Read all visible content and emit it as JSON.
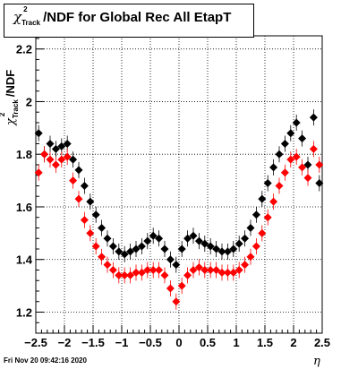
{
  "chart_data": {
    "type": "scatter",
    "title": "χ²_Track/NDF for Global Rec All EtapT",
    "title_parts": {
      "symbol": "χ",
      "sup": "2",
      "sub": "Track",
      "rest": "/NDF for Global Rec All EtapT"
    },
    "xlabel": "η",
    "ylabel": "χ²_Track/NDF",
    "ylabel_parts": {
      "symbol": "χ",
      "sup": "2",
      "sub": "Track",
      "rest": "/NDF"
    },
    "xlim": [
      -2.5,
      2.5
    ],
    "ylim": [
      1.12,
      2.25
    ],
    "x_ticks": [
      -2.5,
      -2,
      -1.5,
      -1,
      -0.5,
      0,
      0.5,
      1,
      1.5,
      2,
      2.5
    ],
    "x_tick_labels": [
      "−2.5",
      "−2",
      "−1.5",
      "−1",
      "−0.5",
      "0",
      "0.5",
      "1",
      "1.5",
      "2",
      "2.5"
    ],
    "y_ticks": [
      1.2,
      1.4,
      1.6,
      1.8,
      2.0,
      2.2
    ],
    "y_tick_labels": [
      "1.2",
      "1.4",
      "1.6",
      "1.8",
      "2",
      "2.2"
    ],
    "grid": true,
    "legend": "none",
    "series": [
      {
        "color": "#000000",
        "x": [
          -2.45,
          -2.35,
          -2.25,
          -2.15,
          -2.05,
          -1.95,
          -1.85,
          -1.75,
          -1.65,
          -1.55,
          -1.45,
          -1.35,
          -1.25,
          -1.15,
          -1.05,
          -0.95,
          -0.85,
          -0.75,
          -0.65,
          -0.55,
          -0.45,
          -0.35,
          -0.25,
          -0.15,
          -0.05,
          0.05,
          0.15,
          0.25,
          0.35,
          0.45,
          0.55,
          0.65,
          0.75,
          0.85,
          0.95,
          1.05,
          1.15,
          1.25,
          1.35,
          1.45,
          1.55,
          1.65,
          1.75,
          1.85,
          1.95,
          2.05,
          2.15,
          2.25,
          2.35,
          2.45
        ],
        "y": [
          1.88,
          1.8,
          1.84,
          1.82,
          1.83,
          1.84,
          1.78,
          1.74,
          1.68,
          1.62,
          1.57,
          1.52,
          1.48,
          1.45,
          1.43,
          1.42,
          1.43,
          1.44,
          1.45,
          1.47,
          1.49,
          1.48,
          1.44,
          1.4,
          1.38,
          1.44,
          1.48,
          1.49,
          1.47,
          1.46,
          1.45,
          1.44,
          1.43,
          1.43,
          1.44,
          1.46,
          1.48,
          1.52,
          1.57,
          1.63,
          1.69,
          1.75,
          1.8,
          1.84,
          1.88,
          1.92,
          1.86,
          1.76,
          1.94,
          1.69
        ]
      },
      {
        "color": "#ff0000",
        "x": [
          -2.45,
          -2.35,
          -2.25,
          -2.15,
          -2.05,
          -1.95,
          -1.85,
          -1.75,
          -1.65,
          -1.55,
          -1.45,
          -1.35,
          -1.25,
          -1.15,
          -1.05,
          -0.95,
          -0.85,
          -0.75,
          -0.65,
          -0.55,
          -0.45,
          -0.35,
          -0.25,
          -0.15,
          -0.05,
          0.05,
          0.15,
          0.25,
          0.35,
          0.45,
          0.55,
          0.65,
          0.75,
          0.85,
          0.95,
          1.05,
          1.15,
          1.25,
          1.35,
          1.45,
          1.55,
          1.65,
          1.75,
          1.85,
          1.95,
          2.05,
          2.15,
          2.25,
          2.35,
          2.45
        ],
        "y": [
          1.73,
          1.8,
          1.78,
          1.76,
          1.78,
          1.79,
          1.7,
          1.63,
          1.55,
          1.5,
          1.45,
          1.41,
          1.38,
          1.36,
          1.34,
          1.34,
          1.34,
          1.35,
          1.35,
          1.36,
          1.36,
          1.36,
          1.34,
          1.29,
          1.24,
          1.3,
          1.34,
          1.36,
          1.37,
          1.36,
          1.36,
          1.36,
          1.35,
          1.35,
          1.35,
          1.36,
          1.38,
          1.41,
          1.45,
          1.5,
          1.56,
          1.62,
          1.68,
          1.73,
          1.78,
          1.79,
          1.75,
          1.71,
          1.82,
          1.76
        ]
      }
    ]
  },
  "footer": {
    "timestamp": "Fri Nov 20 09:42:16 2020"
  }
}
